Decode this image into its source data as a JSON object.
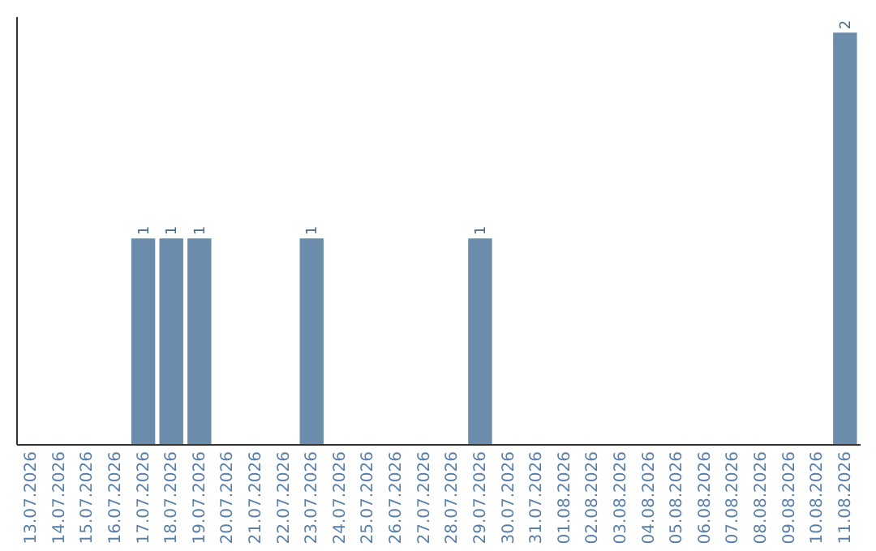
{
  "chart_data": {
    "type": "bar",
    "categories": [
      "13.07.2026",
      "14.07.2026",
      "15.07.2026",
      "16.07.2026",
      "17.07.2026",
      "18.07.2026",
      "19.07.2026",
      "20.07.2026",
      "21.07.2026",
      "22.07.2026",
      "23.07.2026",
      "24.07.2026",
      "25.07.2026",
      "26.07.2026",
      "27.07.2026",
      "28.07.2026",
      "29.07.2026",
      "30.07.2026",
      "31.07.2026",
      "01.08.2026",
      "02.08.2026",
      "03.08.2026",
      "04.08.2026",
      "05.08.2026",
      "06.08.2026",
      "07.08.2026",
      "08.08.2026",
      "09.08.2026",
      "10.08.2026",
      "11.08.2026"
    ],
    "values": [
      0,
      0,
      0,
      0,
      1,
      1,
      1,
      0,
      0,
      0,
      1,
      0,
      0,
      0,
      0,
      0,
      1,
      0,
      0,
      0,
      0,
      0,
      0,
      0,
      0,
      0,
      0,
      0,
      0,
      2
    ],
    "value_labels": [
      null,
      null,
      null,
      null,
      "1",
      "1",
      "1",
      null,
      null,
      null,
      "1",
      null,
      null,
      null,
      null,
      null,
      "1",
      null,
      null,
      null,
      null,
      null,
      null,
      null,
      null,
      null,
      null,
      null,
      null,
      "2"
    ],
    "color": "#6b8caa",
    "tick_labels": "x",
    "grid": false
  }
}
